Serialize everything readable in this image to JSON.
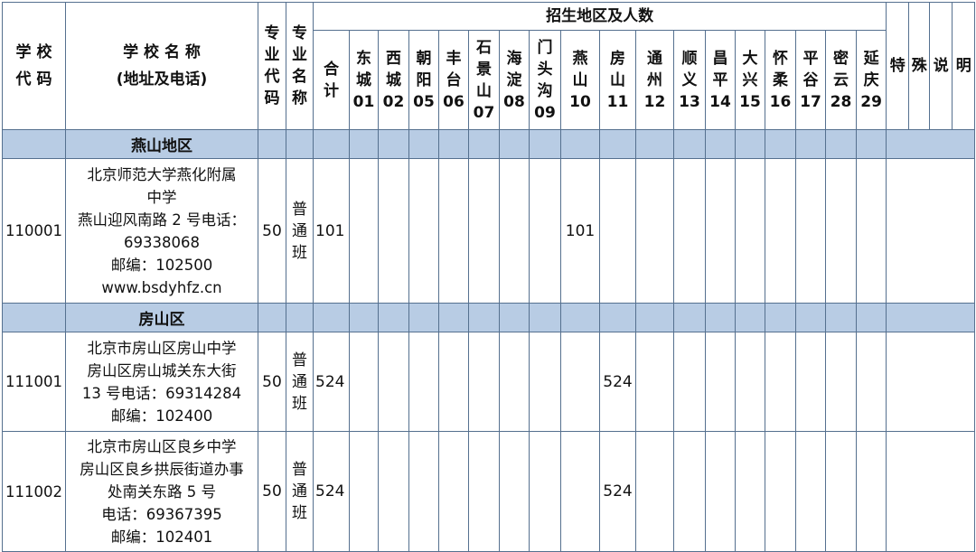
{
  "header": {
    "school_code": "学 校\n代 码",
    "school_name": "学 校 名 称",
    "school_name_sub": "(地址及电话)",
    "major_code": "专业代码",
    "major_name": "专业名称",
    "region_group": "招生地区及人数",
    "total": "合计",
    "special": [
      "特",
      "殊",
      "说",
      "明"
    ]
  },
  "districts": [
    {
      "name": "东城",
      "code": "01"
    },
    {
      "name": "西城",
      "code": "02"
    },
    {
      "name": "朝阳",
      "code": "05"
    },
    {
      "name": "丰台",
      "code": "06"
    },
    {
      "name": "石景山",
      "code": "07"
    },
    {
      "name": "海淀",
      "code": "08"
    },
    {
      "name": "门头沟",
      "code": "09"
    },
    {
      "name": "燕山",
      "code": "10"
    },
    {
      "name": "房山",
      "code": "11"
    },
    {
      "name": "通州",
      "code": "12"
    },
    {
      "name": "顺义",
      "code": "13"
    },
    {
      "name": "昌平",
      "code": "14"
    },
    {
      "name": "大兴",
      "code": "15"
    },
    {
      "name": "怀柔",
      "code": "16"
    },
    {
      "name": "平谷",
      "code": "17"
    },
    {
      "name": "密云",
      "code": "28"
    },
    {
      "name": "延庆",
      "code": "29"
    }
  ],
  "colors": {
    "border": "#55708f",
    "section_bg": "#b8cce4"
  },
  "sections": [
    {
      "title": "燕山地区",
      "rows": [
        {
          "code": "110001",
          "name_lines": [
            "北京师范大学燕化附属",
            "中学",
            "燕山迎风南路 2 号电话：",
            "69338068",
            "邮编：102500",
            "www.bsdyhfz.cn"
          ],
          "major_code": "50",
          "major_name": "普通班",
          "total": "101",
          "values": [
            "",
            "",
            "",
            "",
            "",
            "",
            "",
            "101",
            "",
            "",
            "",
            "",
            "",
            "",
            "",
            "",
            ""
          ],
          "special": ""
        }
      ]
    },
    {
      "title": "房山区",
      "rows": [
        {
          "code": "111001",
          "name_lines": [
            "北京市房山区房山中学",
            "房山区房山城关东大街",
            "13 号电话：69314284",
            "邮编：102400"
          ],
          "major_code": "50",
          "major_name": "普通班",
          "total": "524",
          "values": [
            "",
            "",
            "",
            "",
            "",
            "",
            "",
            "",
            "524",
            "",
            "",
            "",
            "",
            "",
            "",
            "",
            ""
          ],
          "special": ""
        },
        {
          "code": "111002",
          "name_lines": [
            "北京市房山区良乡中学",
            "房山区良乡拱辰街道办事",
            "处南关东路 5 号",
            "电话：69367395",
            "邮编：102401"
          ],
          "major_code": "50",
          "major_name": "普通班",
          "total": "524",
          "values": [
            "",
            "",
            "",
            "",
            "",
            "",
            "",
            "",
            "524",
            "",
            "",
            "",
            "",
            "",
            "",
            "",
            ""
          ],
          "special": ""
        }
      ]
    }
  ]
}
